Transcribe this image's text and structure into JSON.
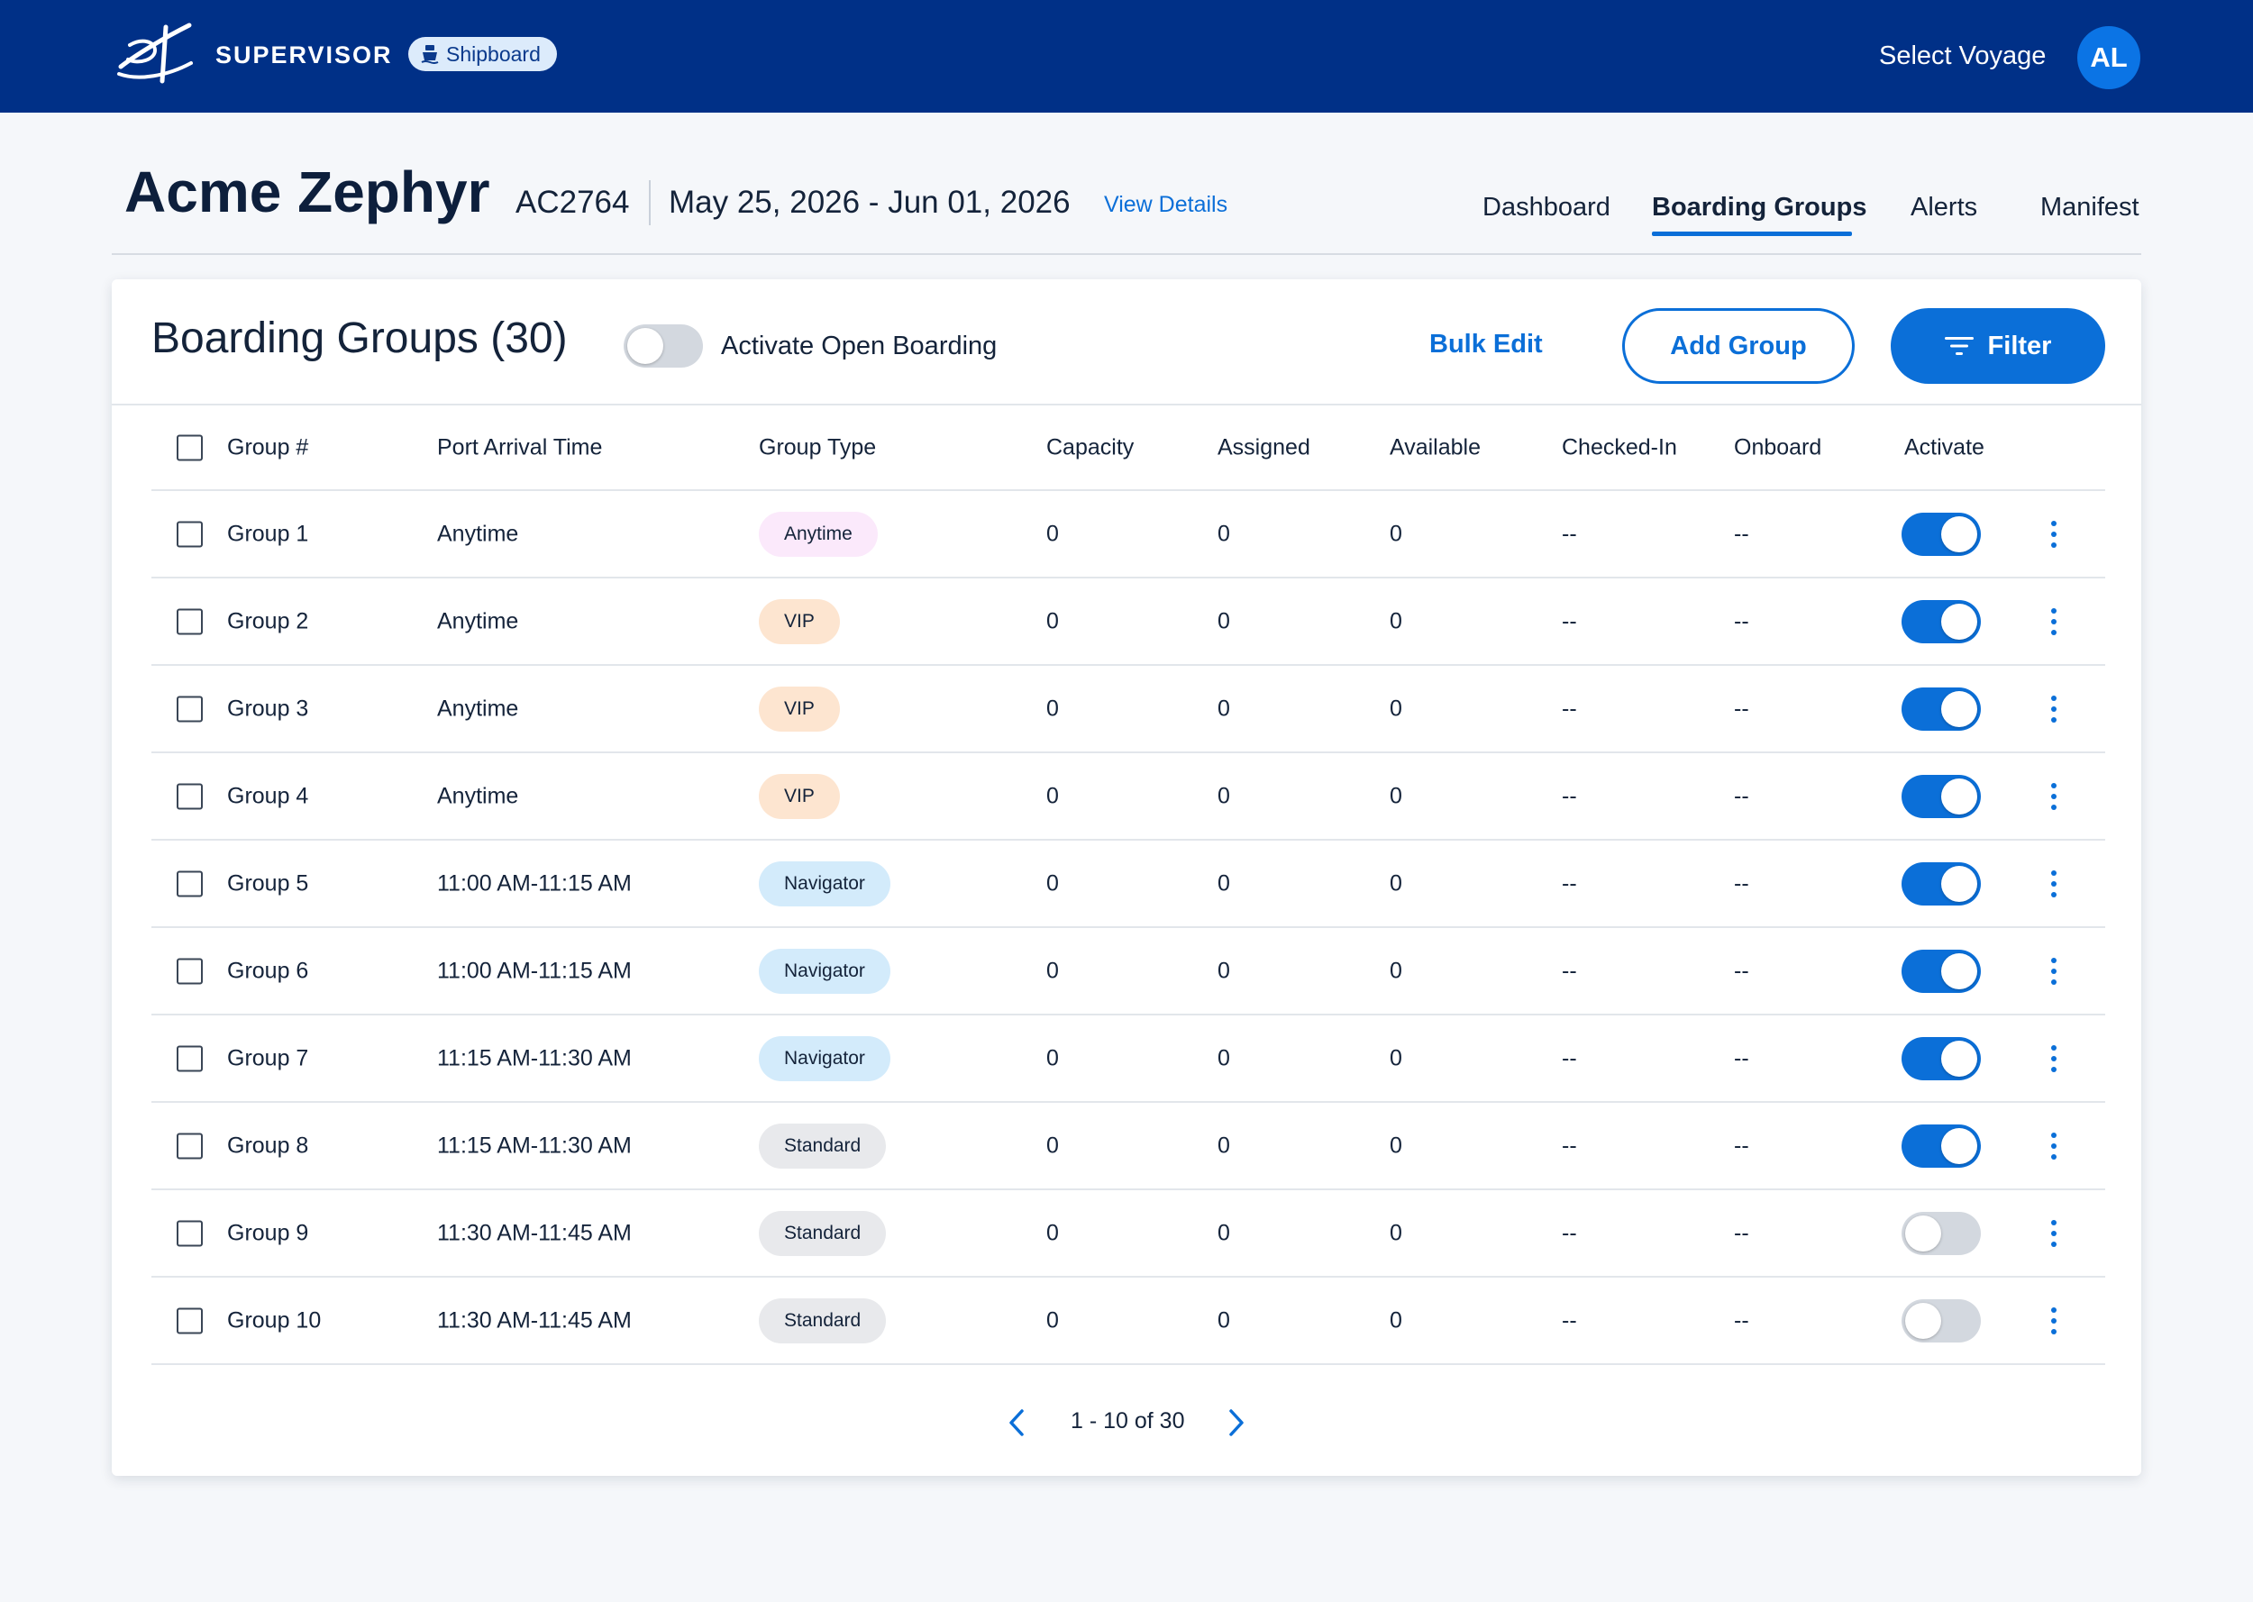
{
  "app": {
    "brand": "SUPERVISOR",
    "badge": "Shipboard",
    "select_voyage": "Select Voyage",
    "user_initials": "AL"
  },
  "voyage": {
    "ship_name": "Acme Zephyr",
    "code": "AC2764",
    "dates": "May 25, 2026 - Jun 01, 2026",
    "view_details": "View Details"
  },
  "nav": {
    "tabs": [
      {
        "label": "Dashboard",
        "active": false
      },
      {
        "label": "Boarding Groups",
        "active": true
      },
      {
        "label": "Alerts",
        "active": false
      },
      {
        "label": "Manifest",
        "active": false
      }
    ]
  },
  "card": {
    "title": "Boarding Groups (30)",
    "open_boarding_label": "Activate Open Boarding",
    "open_boarding_on": false,
    "bulk_edit": "Bulk Edit",
    "add_group": "Add Group",
    "filter": "Filter"
  },
  "table": {
    "columns": [
      "Group #",
      "Port Arrival Time",
      "Group Type",
      "Capacity",
      "Assigned",
      "Available",
      "Checked-In",
      "Onboard",
      "Activate"
    ],
    "rows": [
      {
        "group": "Group 1",
        "arrival": "Anytime",
        "type": "Anytime",
        "type_style": "anytime",
        "capacity": "0",
        "assigned": "0",
        "available": "0",
        "checked_in": "--",
        "onboard": "--",
        "active": true
      },
      {
        "group": "Group 2",
        "arrival": "Anytime",
        "type": "VIP",
        "type_style": "vip",
        "capacity": "0",
        "assigned": "0",
        "available": "0",
        "checked_in": "--",
        "onboard": "--",
        "active": true
      },
      {
        "group": "Group 3",
        "arrival": "Anytime",
        "type": "VIP",
        "type_style": "vip",
        "capacity": "0",
        "assigned": "0",
        "available": "0",
        "checked_in": "--",
        "onboard": "--",
        "active": true
      },
      {
        "group": "Group 4",
        "arrival": "Anytime",
        "type": "VIP",
        "type_style": "vip",
        "capacity": "0",
        "assigned": "0",
        "available": "0",
        "checked_in": "--",
        "onboard": "--",
        "active": true
      },
      {
        "group": "Group 5",
        "arrival": "11:00 AM-11:15 AM",
        "type": "Navigator",
        "type_style": "navigator",
        "capacity": "0",
        "assigned": "0",
        "available": "0",
        "checked_in": "--",
        "onboard": "--",
        "active": true
      },
      {
        "group": "Group 6",
        "arrival": "11:00 AM-11:15 AM",
        "type": "Navigator",
        "type_style": "navigator",
        "capacity": "0",
        "assigned": "0",
        "available": "0",
        "checked_in": "--",
        "onboard": "--",
        "active": true
      },
      {
        "group": "Group 7",
        "arrival": "11:15 AM-11:30 AM",
        "type": "Navigator",
        "type_style": "navigator",
        "capacity": "0",
        "assigned": "0",
        "available": "0",
        "checked_in": "--",
        "onboard": "--",
        "active": true
      },
      {
        "group": "Group 8",
        "arrival": "11:15 AM-11:30 AM",
        "type": "Standard",
        "type_style": "standard",
        "capacity": "0",
        "assigned": "0",
        "available": "0",
        "checked_in": "--",
        "onboard": "--",
        "active": true
      },
      {
        "group": "Group 9",
        "arrival": "11:30 AM-11:45 AM",
        "type": "Standard",
        "type_style": "standard",
        "capacity": "0",
        "assigned": "0",
        "available": "0",
        "checked_in": "--",
        "onboard": "--",
        "active": false
      },
      {
        "group": "Group 10",
        "arrival": "11:30 AM-11:45 AM",
        "type": "Standard",
        "type_style": "standard",
        "capacity": "0",
        "assigned": "0",
        "available": "0",
        "checked_in": "--",
        "onboard": "--",
        "active": false
      }
    ]
  },
  "pill_colors": {
    "anytime": "#fbe9fb",
    "vip": "#fde5d0",
    "navigator": "#d3ebfb",
    "standard": "#e8e9ec"
  },
  "pagination": {
    "range": "1 - 10 of 30"
  },
  "colors": {
    "topbar": "#003087",
    "accent": "#0b6fd8"
  }
}
